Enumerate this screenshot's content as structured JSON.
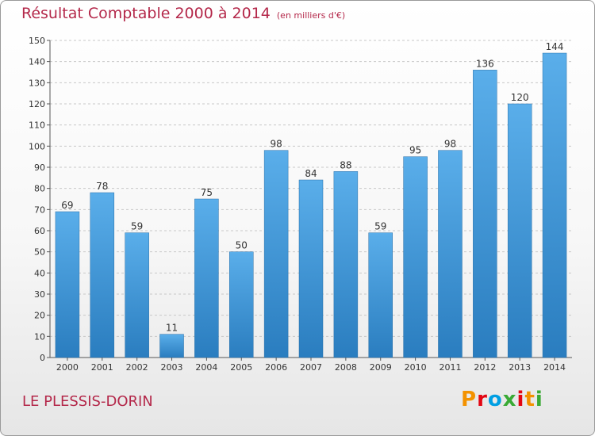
{
  "header": {
    "title": "Résultat Comptable 2000 à 2014",
    "subtitle": "(en milliers d'€)"
  },
  "footer": {
    "commune": "LE PLESSIS-DORIN",
    "logo": "Proxiti"
  },
  "logo_colors": [
    "#f39200",
    "#e30613",
    "#009fe3",
    "#3aaa35",
    "#e30613",
    "#f39200",
    "#3aaa35"
  ],
  "colors": {
    "bar_top": "#5aaeea",
    "bar_bottom": "#2a7dbf",
    "title": "#b4284a"
  },
  "chart_data": {
    "type": "bar",
    "title": "Résultat Comptable 2000 à 2014",
    "subtitle": "(en milliers d'€)",
    "categories": [
      "2000",
      "2001",
      "2002",
      "2003",
      "2004",
      "2005",
      "2006",
      "2007",
      "2008",
      "2009",
      "2010",
      "2011",
      "2012",
      "2013",
      "2014"
    ],
    "values": [
      69,
      78,
      59,
      11,
      75,
      50,
      98,
      84,
      88,
      59,
      95,
      98,
      136,
      120,
      144
    ],
    "ylim": [
      0,
      150
    ],
    "ytick_step": 10,
    "grid": true,
    "legend": "none"
  }
}
